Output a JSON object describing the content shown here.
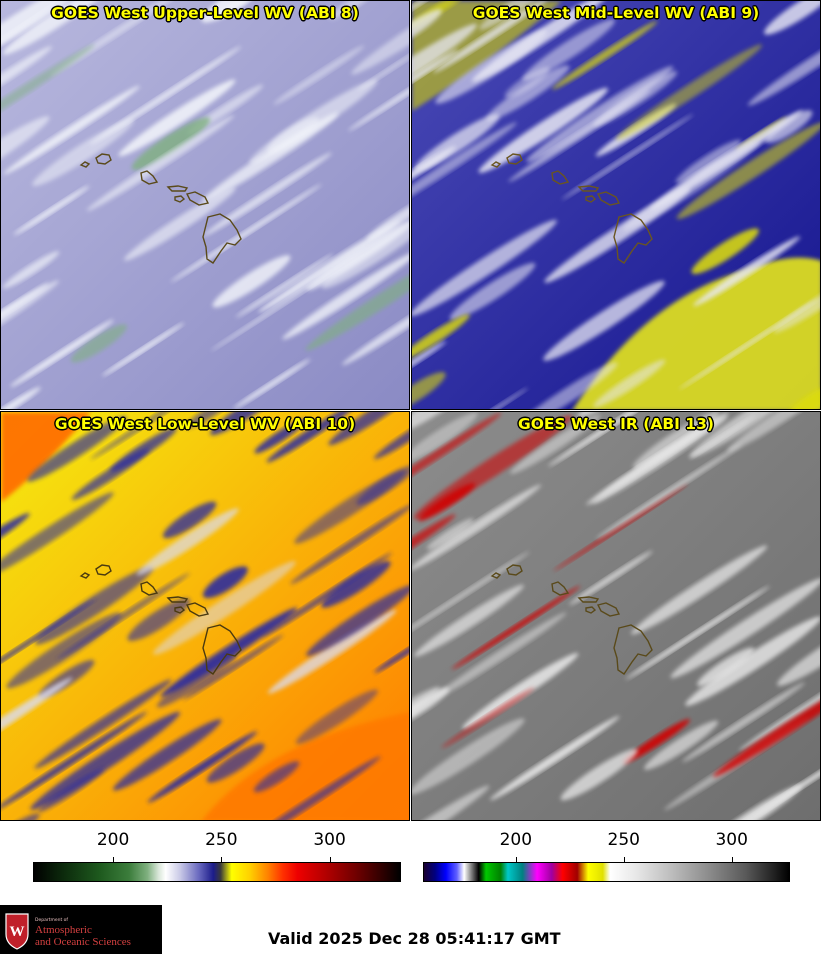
{
  "panels": [
    {
      "title": "GOES West Upper-Level WV (ABI 8)",
      "bg_dark": "#8a8ac4",
      "bg_light": "#b8b8de",
      "cloud_color": "#f2f4fa",
      "accent_color": "#7fb07f",
      "coast_color": "#5a4a1a"
    },
    {
      "title": "GOES West Mid-Level WV (ABI 9)",
      "bg_dark": "#14148e",
      "bg_light": "#4a4ab6",
      "cloud_color": "#e8e8f4",
      "accent_color": "#dcdc10",
      "coast_color": "#6a5520"
    },
    {
      "title": "GOES West Low-Level WV (ABI 10)",
      "bg_dark": "#ff7a00",
      "bg_light": "#f4ec10",
      "cloud_color": "#2a2aa0",
      "accent_color": "#dcdcf0",
      "coast_color": "#4a3a10"
    },
    {
      "title": "GOES West IR (ABI 13)",
      "bg_dark": "#6e6e6e",
      "bg_light": "#8c8c8c",
      "cloud_color": "#e6e6e6",
      "accent_color": "#d00000",
      "coast_color": "#5a4a1a"
    }
  ],
  "colorbars": [
    {
      "name": "wv",
      "ticks": [
        "200",
        "250",
        "300"
      ],
      "tick_values": [
        200,
        250,
        300
      ],
      "range": [
        163,
        333
      ]
    },
    {
      "name": "ir",
      "ticks": [
        "200",
        "250",
        "300"
      ],
      "tick_values": [
        200,
        250,
        300
      ],
      "range": [
        157,
        327
      ]
    }
  ],
  "logo": {
    "dept": "Department of",
    "line1": "Atmospheric",
    "line2": "and Oceanic Sciences",
    "color": "#c0202a"
  },
  "valid_time": "Valid 2025 Dec 28 05:41:17 GMT"
}
